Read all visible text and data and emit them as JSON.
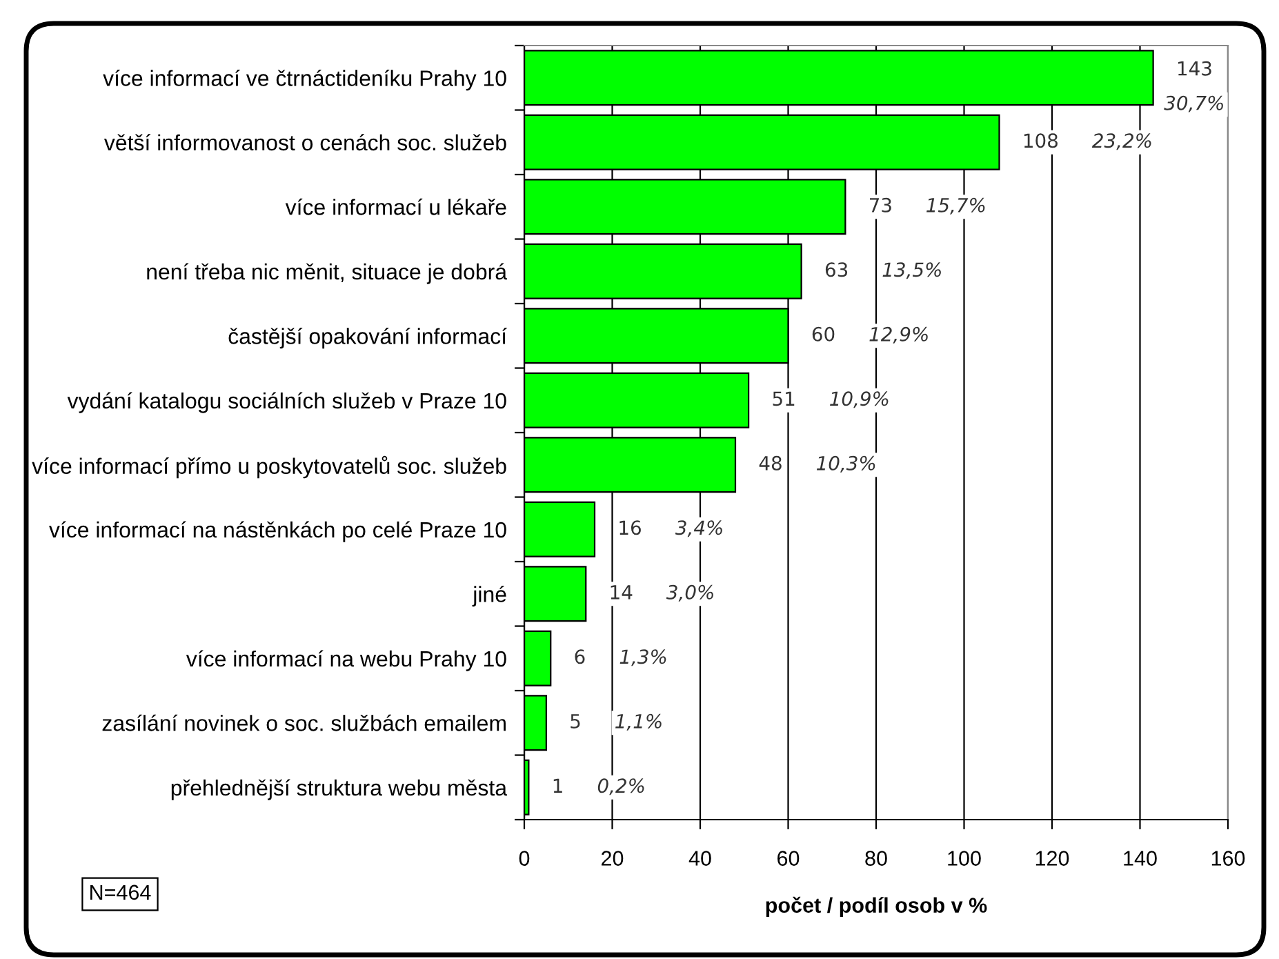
{
  "chart_data": {
    "type": "bar",
    "orientation": "horizontal",
    "categories": [
      "více informací ve čtrnáctideníku Prahy 10",
      "větší informovanost o cenách soc. služeb",
      "více informací u lékaře",
      "není třeba nic měnit, situace je dobrá",
      "častější opakování informací",
      "vydání katalogu sociálních služeb v Praze 10",
      "více informací přímo u poskytovatelů soc. služeb",
      "více informací na nástěnkách po celé Praze 10",
      "jiné",
      "více informací na webu Prahy 10",
      "zasílání novinek o soc. službách emailem",
      "přehlednější struktura webu města"
    ],
    "values": [
      143,
      108,
      73,
      63,
      60,
      51,
      48,
      16,
      14,
      6,
      5,
      1
    ],
    "color": "#00ff00",
    "xlim": [
      0,
      160
    ],
    "xticks": [
      0,
      20,
      40,
      60,
      80,
      100,
      120,
      140,
      160
    ],
    "xlabel": "počet / podíl osob v %",
    "grid": "x",
    "data_labels": true,
    "annotations": [
      "30,7%",
      "23,2%",
      "15,7%",
      "13,5%",
      "12,9%",
      "10,9%",
      "10,3%",
      "3,4%",
      "3,0%",
      "1,3%",
      "1,1%",
      "0,2%",
      "N=464"
    ]
  }
}
